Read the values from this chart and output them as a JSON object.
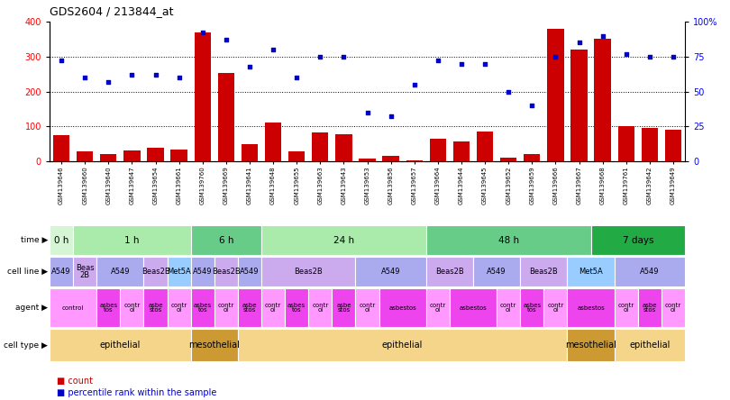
{
  "title": "GDS2604 / 213844_at",
  "samples": [
    "GSM139646",
    "GSM139660",
    "GSM139640",
    "GSM139647",
    "GSM139654",
    "GSM139661",
    "GSM139760",
    "GSM139669",
    "GSM139641",
    "GSM139648",
    "GSM139655",
    "GSM139663",
    "GSM139643",
    "GSM139653",
    "GSM139856",
    "GSM139657",
    "GSM139664",
    "GSM139644",
    "GSM139645",
    "GSM139652",
    "GSM139659",
    "GSM139666",
    "GSM139667",
    "GSM139668",
    "GSM139761",
    "GSM139642",
    "GSM139649"
  ],
  "counts": [
    75,
    28,
    20,
    32,
    40,
    33,
    370,
    252,
    50,
    110,
    28,
    82,
    78,
    8,
    15,
    3,
    65,
    57,
    85,
    10,
    20,
    380,
    320,
    350,
    100,
    95,
    90
  ],
  "percentiles": [
    72,
    60,
    57,
    62,
    62,
    60,
    92,
    87,
    68,
    80,
    60,
    75,
    75,
    35,
    32,
    55,
    72,
    70,
    70,
    50,
    40,
    75,
    85,
    90,
    77,
    75,
    75
  ],
  "time_groups": [
    {
      "label": "0 h",
      "start": 0,
      "end": 1,
      "color": "#d5f5d5"
    },
    {
      "label": "1 h",
      "start": 1,
      "end": 6,
      "color": "#aaeaaa"
    },
    {
      "label": "6 h",
      "start": 6,
      "end": 9,
      "color": "#66cc88"
    },
    {
      "label": "24 h",
      "start": 9,
      "end": 16,
      "color": "#aaeaaa"
    },
    {
      "label": "48 h",
      "start": 16,
      "end": 23,
      "color": "#66cc88"
    },
    {
      "label": "7 days",
      "start": 23,
      "end": 27,
      "color": "#22aa44"
    }
  ],
  "cell_line_groups": [
    {
      "label": "A549",
      "start": 0,
      "end": 1,
      "color": "#aaaaee"
    },
    {
      "label": "Beas\n2B",
      "start": 1,
      "end": 2,
      "color": "#ccaaee"
    },
    {
      "label": "A549",
      "start": 2,
      "end": 4,
      "color": "#aaaaee"
    },
    {
      "label": "Beas2B",
      "start": 4,
      "end": 5,
      "color": "#ccaaee"
    },
    {
      "label": "Met5A",
      "start": 5,
      "end": 6,
      "color": "#99ccff"
    },
    {
      "label": "A549",
      "start": 6,
      "end": 7,
      "color": "#aaaaee"
    },
    {
      "label": "Beas2B",
      "start": 7,
      "end": 8,
      "color": "#ccaaee"
    },
    {
      "label": "A549",
      "start": 8,
      "end": 9,
      "color": "#aaaaee"
    },
    {
      "label": "Beas2B",
      "start": 9,
      "end": 13,
      "color": "#ccaaee"
    },
    {
      "label": "A549",
      "start": 13,
      "end": 16,
      "color": "#aaaaee"
    },
    {
      "label": "Beas2B",
      "start": 16,
      "end": 18,
      "color": "#ccaaee"
    },
    {
      "label": "A549",
      "start": 18,
      "end": 20,
      "color": "#aaaaee"
    },
    {
      "label": "Beas2B",
      "start": 20,
      "end": 22,
      "color": "#ccaaee"
    },
    {
      "label": "Met5A",
      "start": 22,
      "end": 24,
      "color": "#99ccff"
    },
    {
      "label": "A549",
      "start": 24,
      "end": 27,
      "color": "#aaaaee"
    }
  ],
  "agent_groups": [
    {
      "label": "control",
      "start": 0,
      "end": 2,
      "color": "#ff99ff"
    },
    {
      "label": "asbes\ntos",
      "start": 2,
      "end": 3,
      "color": "#ee44ee"
    },
    {
      "label": "contr\nol",
      "start": 3,
      "end": 4,
      "color": "#ff99ff"
    },
    {
      "label": "asbe\nstos",
      "start": 4,
      "end": 5,
      "color": "#ee44ee"
    },
    {
      "label": "contr\nol",
      "start": 5,
      "end": 6,
      "color": "#ff99ff"
    },
    {
      "label": "asbes\ntos",
      "start": 6,
      "end": 7,
      "color": "#ee44ee"
    },
    {
      "label": "contr\nol",
      "start": 7,
      "end": 8,
      "color": "#ff99ff"
    },
    {
      "label": "asbe\nstos",
      "start": 8,
      "end": 9,
      "color": "#ee44ee"
    },
    {
      "label": "contr\nol",
      "start": 9,
      "end": 10,
      "color": "#ff99ff"
    },
    {
      "label": "asbes\ntos",
      "start": 10,
      "end": 11,
      "color": "#ee44ee"
    },
    {
      "label": "contr\nol",
      "start": 11,
      "end": 12,
      "color": "#ff99ff"
    },
    {
      "label": "asbe\nstos",
      "start": 12,
      "end": 13,
      "color": "#ee44ee"
    },
    {
      "label": "contr\nol",
      "start": 13,
      "end": 14,
      "color": "#ff99ff"
    },
    {
      "label": "asbestos",
      "start": 14,
      "end": 16,
      "color": "#ee44ee"
    },
    {
      "label": "contr\nol",
      "start": 16,
      "end": 17,
      "color": "#ff99ff"
    },
    {
      "label": "asbestos",
      "start": 17,
      "end": 19,
      "color": "#ee44ee"
    },
    {
      "label": "contr\nol",
      "start": 19,
      "end": 20,
      "color": "#ff99ff"
    },
    {
      "label": "asbes\ntos",
      "start": 20,
      "end": 21,
      "color": "#ee44ee"
    },
    {
      "label": "contr\nol",
      "start": 21,
      "end": 22,
      "color": "#ff99ff"
    },
    {
      "label": "asbestos",
      "start": 22,
      "end": 24,
      "color": "#ee44ee"
    },
    {
      "label": "contr\nol",
      "start": 24,
      "end": 25,
      "color": "#ff99ff"
    },
    {
      "label": "asbe\nstos",
      "start": 25,
      "end": 26,
      "color": "#ee44ee"
    },
    {
      "label": "contr\nol",
      "start": 26,
      "end": 27,
      "color": "#ff99ff"
    }
  ],
  "cell_type_groups": [
    {
      "label": "epithelial",
      "start": 0,
      "end": 6,
      "color": "#f5d58a"
    },
    {
      "label": "mesothelial",
      "start": 6,
      "end": 8,
      "color": "#cc9933"
    },
    {
      "label": "epithelial",
      "start": 8,
      "end": 22,
      "color": "#f5d58a"
    },
    {
      "label": "mesothelial",
      "start": 22,
      "end": 24,
      "color": "#cc9933"
    },
    {
      "label": "epithelial",
      "start": 24,
      "end": 27,
      "color": "#f5d58a"
    }
  ],
  "bar_color": "#cc0000",
  "dot_color": "#0000cc",
  "left_ylim": [
    0,
    400
  ],
  "left_yticks": [
    0,
    100,
    200,
    300,
    400
  ],
  "right_yticks": [
    0,
    25,
    50,
    75,
    100
  ],
  "right_yticklabels": [
    "0",
    "25",
    "50",
    "75",
    "100%"
  ],
  "figsize": [
    8.1,
    4.44
  ],
  "dpi": 100
}
